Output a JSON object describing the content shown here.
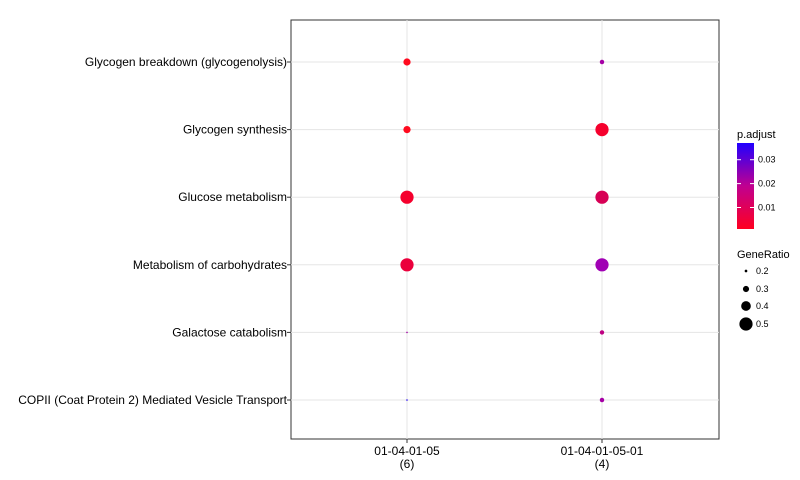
{
  "chart_data": {
    "type": "scatter",
    "title": "",
    "xlabel": "",
    "ylabel": "",
    "categories_x": [
      {
        "label": "01-04-01-05",
        "count": "(6)"
      },
      {
        "label": "01-04-01-05-01",
        "count": "(4)"
      }
    ],
    "categories_y": [
      "Glycogen breakdown (glycogenolysis)",
      "Glycogen synthesis",
      "Glucose metabolism",
      "Metabolism of carbohydrates",
      "Galactose catabolism",
      "COPII (Coat Protein 2) Mediated Vesicle Transport"
    ],
    "points": [
      {
        "x": "01-04-01-05",
        "y": "Glycogen breakdown (glycogenolysis)",
        "gene_ratio": 0.33,
        "p_adjust": 0.001,
        "color": "#FF0A1E"
      },
      {
        "x": "01-04-01-05",
        "y": "Glycogen synthesis",
        "gene_ratio": 0.33,
        "p_adjust": 0.001,
        "color": "#FF0A1E"
      },
      {
        "x": "01-04-01-05",
        "y": "Glucose metabolism",
        "gene_ratio": 0.5,
        "p_adjust": 0.002,
        "color": "#F5002D"
      },
      {
        "x": "01-04-01-05",
        "y": "Metabolism of carbohydrates",
        "gene_ratio": 0.5,
        "p_adjust": 0.004,
        "color": "#EB003C"
      },
      {
        "x": "01-04-01-05",
        "y": "Galactose catabolism",
        "gene_ratio": 0.17,
        "p_adjust": 0.025,
        "color": "#A000A5"
      },
      {
        "x": "01-04-01-05",
        "y": "COPII (Coat Protein 2) Mediated Vesicle Transport",
        "gene_ratio": 0.17,
        "p_adjust": 0.037,
        "color": "#1E00F5"
      },
      {
        "x": "01-04-01-05-01",
        "y": "Glycogen breakdown (glycogenolysis)",
        "gene_ratio": 0.25,
        "p_adjust": 0.024,
        "color": "#A500A5"
      },
      {
        "x": "01-04-01-05-01",
        "y": "Glycogen synthesis",
        "gene_ratio": 0.5,
        "p_adjust": 0.002,
        "color": "#F5002D"
      },
      {
        "x": "01-04-01-05-01",
        "y": "Glucose metabolism",
        "gene_ratio": 0.5,
        "p_adjust": 0.008,
        "color": "#D70055"
      },
      {
        "x": "01-04-01-05-01",
        "y": "Metabolism of carbohydrates",
        "gene_ratio": 0.5,
        "p_adjust": 0.026,
        "color": "#A000B4"
      },
      {
        "x": "01-04-01-05-01",
        "y": "Galactose catabolism",
        "gene_ratio": 0.25,
        "p_adjust": 0.016,
        "color": "#BE0082"
      },
      {
        "x": "01-04-01-05-01",
        "y": "COPII (Coat Protein 2) Mediated Vesicle Transport",
        "gene_ratio": 0.25,
        "p_adjust": 0.024,
        "color": "#A500A5"
      }
    ],
    "grid": true,
    "legend_color": {
      "title": "p.adjust",
      "ticks": [
        "0.03",
        "0.02",
        "0.01"
      ],
      "tick_values": [
        0.03,
        0.02,
        0.01
      ],
      "range": [
        0.001,
        0.037
      ],
      "colors": {
        "low": "#FF0020",
        "high": "#2000FF"
      }
    },
    "legend_size": {
      "title": "GeneRatio",
      "entries": [
        {
          "label": "0.2",
          "value": 0.2
        },
        {
          "label": "0.3",
          "value": 0.3
        },
        {
          "label": "0.4",
          "value": 0.4
        },
        {
          "label": "0.5",
          "value": 0.5
        }
      ]
    },
    "legend_placement": "right"
  }
}
